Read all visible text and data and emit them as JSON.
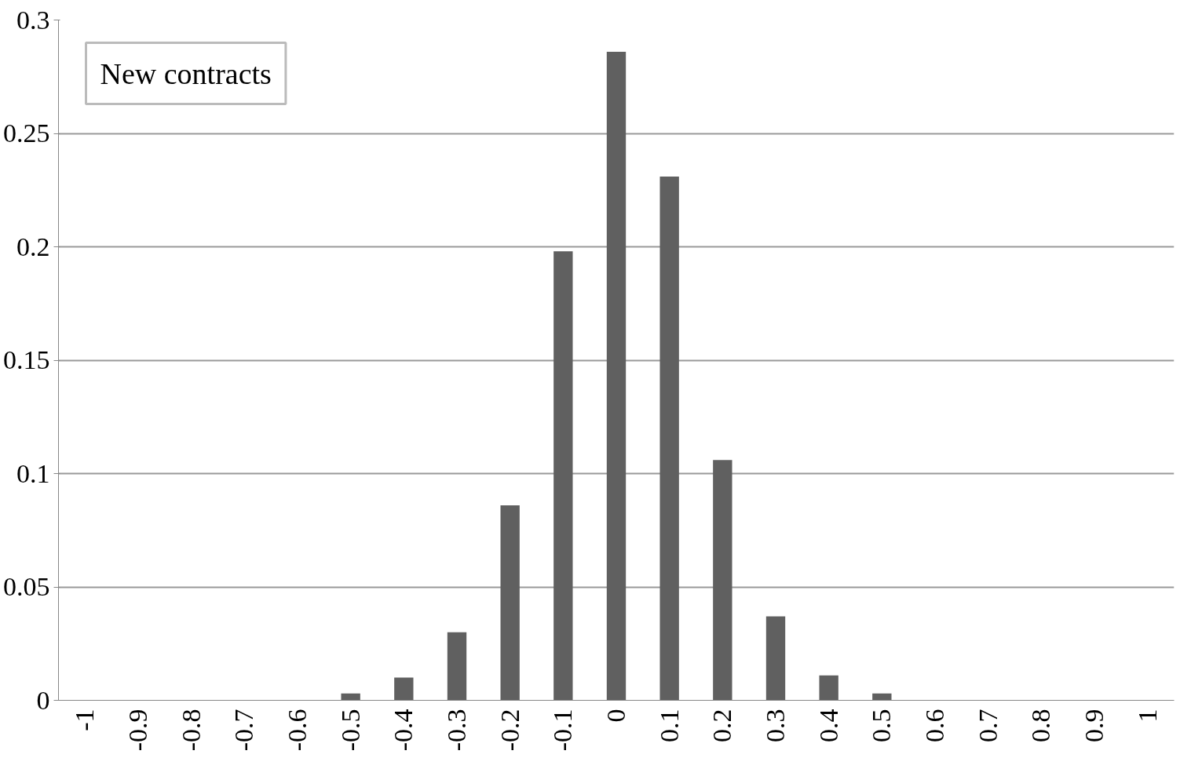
{
  "chart_data": {
    "type": "bar",
    "title": "New contracts",
    "categories": [
      "-1",
      "-0.9",
      "-0.8",
      "-0.7",
      "-0.6",
      "-0.5",
      "-0.4",
      "-0.3",
      "-0.2",
      "-0.1",
      "0",
      "0.1",
      "0.2",
      "0.3",
      "0.4",
      "0.5",
      "0.6",
      "0.7",
      "0.8",
      "0.9",
      "1"
    ],
    "values": [
      0,
      0,
      0,
      0,
      0,
      0.003,
      0.01,
      0.03,
      0.086,
      0.198,
      0.286,
      0.231,
      0.106,
      0.037,
      0.011,
      0.003,
      0,
      0,
      0,
      0,
      0
    ],
    "color": "#606060",
    "ylim": [
      0,
      0.3
    ],
    "yticks": [
      0,
      0.05,
      0.1,
      0.15,
      0.2,
      0.25,
      0.3
    ],
    "grid": "y"
  }
}
